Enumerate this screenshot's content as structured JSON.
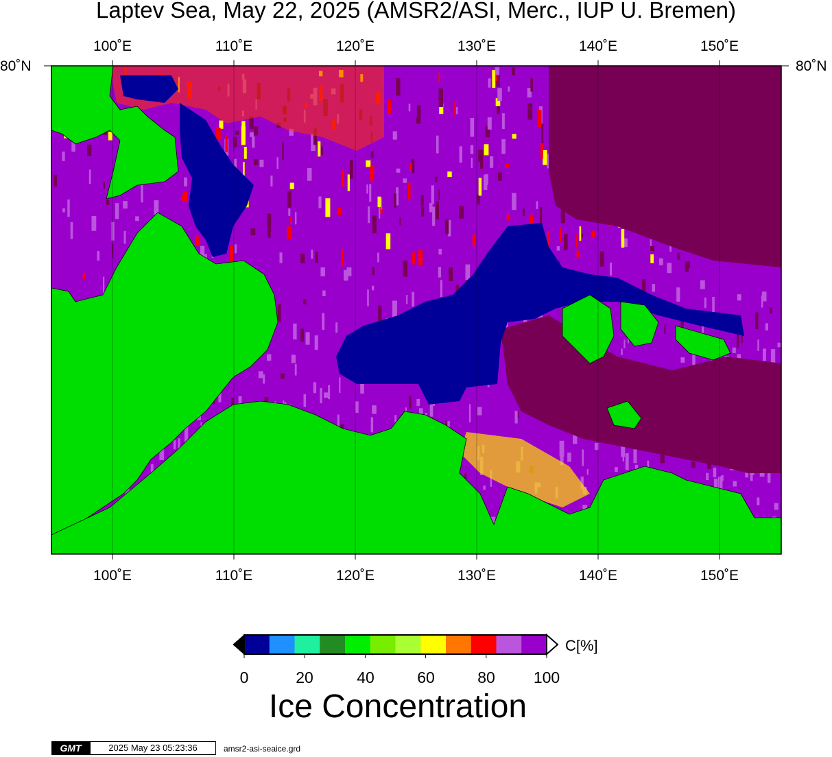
{
  "title": "Laptev Sea, May 22, 2025 (AMSR2/ASI, Merc., IUP U. Bremen)",
  "map": {
    "lon_labels": [
      "100˚E",
      "110˚E",
      "120˚E",
      "130˚E",
      "140˚E",
      "150˚E"
    ],
    "lat_label_left": "80˚N",
    "lat_label_right": "80˚N",
    "lon_min": 95,
    "lon_max": 155,
    "colors": {
      "land": "#00dd00",
      "open_water": "#000099",
      "multiyear_ice": "#770055",
      "dense_ice": "#9900cc",
      "border": "#000000"
    }
  },
  "colorbar": {
    "unit": "C[%]",
    "tick_labels": [
      "0",
      "20",
      "40",
      "60",
      "80",
      "100"
    ],
    "colors": [
      "#000099",
      "#1e90ff",
      "#1ef0a0",
      "#228b22",
      "#00ee00",
      "#77ee00",
      "#aaff33",
      "#ffff00",
      "#ff7700",
      "#ff0000",
      "#bb55dd",
      "#9900cc"
    ],
    "title": "Ice Concentration"
  },
  "footer": {
    "logo": "GMT",
    "timestamp": "2025 May 23 05:23:36",
    "filename": "amsr2-asi-seaice.grd"
  }
}
